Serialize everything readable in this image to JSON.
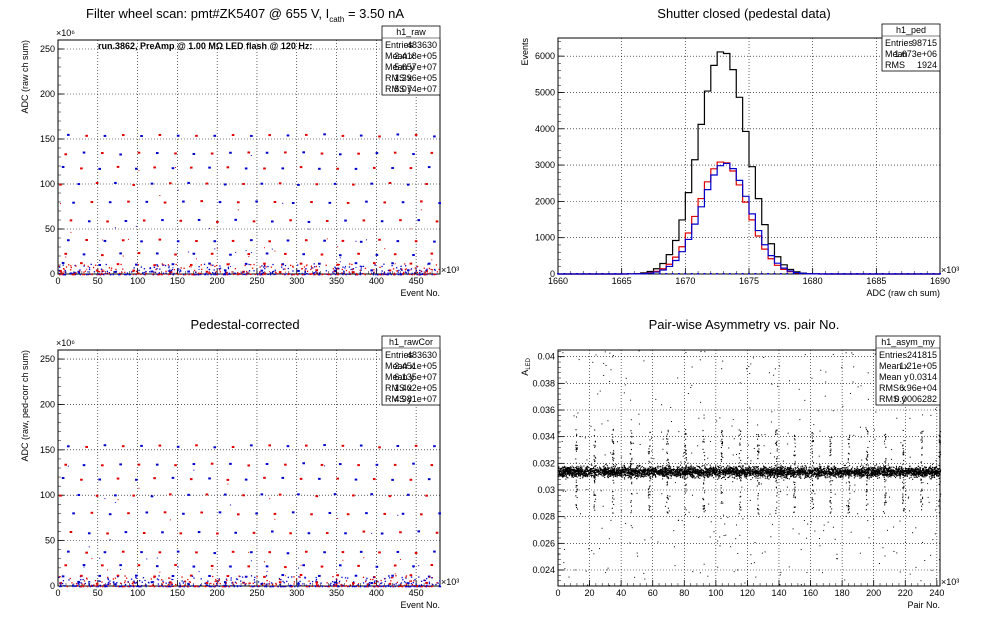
{
  "colors": {
    "red": "#e00000",
    "blue": "#0000cc",
    "black": "#000000",
    "grid": "#000000"
  },
  "chart_data": [
    {
      "type": "scatter",
      "id": "raw",
      "title_parts": [
        "Filter wheel scan: pmt#ZK5407 @   655 V, I",
        "cath",
        " = 3.50 nA"
      ],
      "annotation": "run.3862, PreAmp @ 1.00 MΩ LED flash @  120 Hz:",
      "xlabel": "Event No.",
      "ylabel": "ADC (raw ch sum)",
      "x_exponent": "×10³",
      "y_exponent": "×10⁶",
      "xlim": [
        0,
        480
      ],
      "ylim": [
        0,
        260
      ],
      "x_ticks": [
        0,
        50,
        100,
        150,
        200,
        250,
        300,
        350,
        400,
        450
      ],
      "y_ticks": [
        0,
        50,
        100,
        150,
        200,
        250
      ],
      "grid": true,
      "stats": {
        "name": "h1_raw",
        "rows": [
          [
            "Entries",
            "483630"
          ],
          [
            "Mean x",
            "2.418e+05"
          ],
          [
            "Mean y",
            "5.657e+07"
          ],
          [
            "RMS x",
            "1.396e+05"
          ],
          [
            "RMS y",
            "5.074e+07"
          ]
        ]
      },
      "bands": [
        3,
        11,
        22,
        37,
        59,
        80,
        100,
        118,
        134,
        154
      ],
      "cycle_period": 23,
      "series": [
        {
          "color": "red"
        },
        {
          "color": "blue"
        }
      ]
    },
    {
      "type": "line",
      "id": "ped",
      "title": "Shutter closed (pedestal data)",
      "xlabel": "ADC (raw ch sum)",
      "ylabel": "Events",
      "x_exponent": "×10³",
      "xlim": [
        1660,
        1690
      ],
      "ylim": [
        0,
        6500
      ],
      "x_ticks": [
        1660,
        1665,
        1670,
        1675,
        1680,
        1685,
        1690
      ],
      "y_ticks": [
        0,
        1000,
        2000,
        3000,
        4000,
        5000,
        6000
      ],
      "grid": true,
      "stats": {
        "name": "h1_ped",
        "rows": [
          [
            "Entries",
            "98715"
          ],
          [
            "Mean",
            "1.673e+06"
          ],
          [
            "RMS",
            "1924"
          ]
        ]
      },
      "series": [
        {
          "color": "black",
          "peak": 6150,
          "mean": 1672.7,
          "sigma": 1.9
        },
        {
          "color": "red",
          "peak": 3100,
          "mean": 1672.7,
          "sigma": 1.9
        },
        {
          "color": "blue",
          "peak": 3050,
          "mean": 1672.9,
          "sigma": 1.9
        }
      ]
    },
    {
      "type": "scatter",
      "id": "rawCor",
      "title": "Pedestal-corrected",
      "xlabel": "Event No.",
      "ylabel": "ADC (raw, ped-corr ch sum)",
      "x_exponent": "×10³",
      "y_exponent": "×10⁶",
      "xlim": [
        0,
        480
      ],
      "ylim": [
        0,
        260
      ],
      "x_ticks": [
        0,
        50,
        100,
        150,
        200,
        250,
        300,
        350,
        400,
        450
      ],
      "y_ticks": [
        0,
        50,
        100,
        150,
        200,
        250
      ],
      "grid": true,
      "stats": {
        "name": "h1_rawCor",
        "rows": [
          [
            "Entries",
            "483630"
          ],
          [
            "Mean x",
            "2.451e+05"
          ],
          [
            "Mean y",
            "6.135e+07"
          ],
          [
            "RMS x",
            "1.402e+05"
          ],
          [
            "RMS y",
            "4.981e+07"
          ]
        ]
      },
      "bands": [
        3,
        11,
        22,
        37,
        59,
        80,
        100,
        118,
        134,
        154
      ],
      "cycle_period": 23,
      "series": [
        {
          "color": "red"
        },
        {
          "color": "blue"
        }
      ]
    },
    {
      "type": "scatter",
      "id": "asym",
      "title": "Pair-wise Asymmetry vs. pair No.",
      "xlabel": "Pair No.",
      "ylabel": "A_LED",
      "x_exponent": "×10³",
      "xlim": [
        0,
        242
      ],
      "ylim": [
        0.0228,
        0.0405
      ],
      "x_ticks": [
        0,
        20,
        40,
        60,
        80,
        100,
        120,
        140,
        160,
        180,
        200,
        220,
        240
      ],
      "y_ticks": [
        0.024,
        0.026,
        0.028,
        0.03,
        0.032,
        0.034,
        0.036,
        0.038,
        0.04
      ],
      "grid": true,
      "stats": {
        "name": "h1_asym_my",
        "rows": [
          [
            "Entries",
            "241815"
          ],
          [
            "Mean x",
            "1.21e+05"
          ],
          [
            "Mean y",
            "0.0314"
          ],
          [
            "RMS x",
            "6.96e+04"
          ],
          [
            "RMS y",
            "0.0006282"
          ]
        ]
      },
      "center": 0.0314,
      "spike_period": 11.5,
      "series": [
        {
          "color": "black"
        }
      ]
    }
  ]
}
